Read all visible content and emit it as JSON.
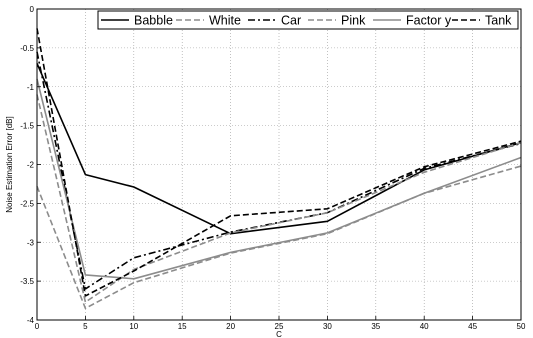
{
  "chart_data": {
    "type": "line",
    "title": "",
    "xlabel": "C",
    "ylabel": "Noise Estimation Error [dB]",
    "x": [
      0,
      5,
      10,
      20,
      30,
      40,
      50
    ],
    "xlim": [
      0,
      50
    ],
    "ylim": [
      -4,
      0
    ],
    "xticks": [
      "0",
      "5",
      "10",
      "15",
      "20",
      "25",
      "30",
      "35",
      "40",
      "45",
      "50"
    ],
    "yticks": [
      "0",
      "-0.5",
      "-1",
      "-1.5",
      "-2",
      "-2.5",
      "-3",
      "-3.5",
      "-4"
    ],
    "grid": true,
    "legend_position": "top",
    "series": [
      {
        "name": "Babble",
        "values": [
          -0.7,
          -2.13,
          -2.29,
          -2.89,
          -2.73,
          -2.07,
          -1.72
        ],
        "color": "#000000",
        "style": "solid"
      },
      {
        "name": "White",
        "values": [
          -2.28,
          -3.85,
          -3.52,
          -3.14,
          -2.89,
          -2.37,
          -2.02
        ],
        "color": "#8c8c8c",
        "style": "dashed"
      },
      {
        "name": "Car",
        "values": [
          -0.55,
          -3.6,
          -3.2,
          -2.87,
          -2.62,
          -2.05,
          -1.73
        ],
        "color": "#000000",
        "style": "dashdot"
      },
      {
        "name": "Pink",
        "values": [
          -1.1,
          -3.77,
          -3.35,
          -2.88,
          -2.62,
          -2.1,
          -1.72
        ],
        "color": "#8c8c8c",
        "style": "dashed"
      },
      {
        "name": "Factor y",
        "values": [
          -0.9,
          -3.42,
          -3.47,
          -3.13,
          -2.88,
          -2.37,
          -1.91
        ],
        "color": "#8c8c8c",
        "style": "solid"
      },
      {
        "name": "Tank",
        "values": [
          -0.25,
          -3.69,
          -3.37,
          -2.66,
          -2.57,
          -2.03,
          -1.7
        ],
        "color": "#000000",
        "style": "dashed"
      }
    ]
  }
}
